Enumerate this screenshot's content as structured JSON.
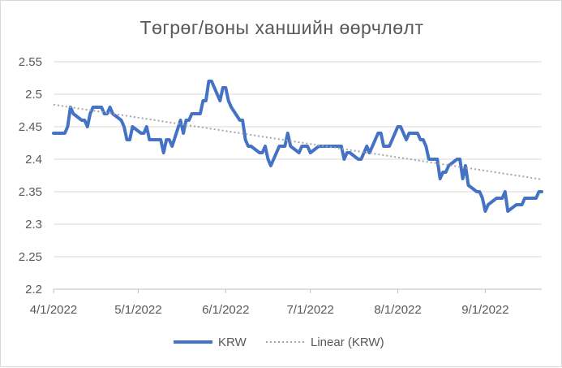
{
  "chart_data": {
    "type": "line",
    "title": "Төгрөг/воны ханшийн өөрчлөлт",
    "xlabel": "",
    "ylabel": "",
    "x_ticks": [
      "4/1/2022",
      "5/1/2022",
      "6/1/2022",
      "7/1/2022",
      "8/1/2022",
      "9/1/2022"
    ],
    "y_ticks": [
      "2.2",
      "2.25",
      "2.3",
      "2.35",
      "2.4",
      "2.45",
      "2.5",
      "2.55"
    ],
    "ylim": [
      2.2,
      2.55
    ],
    "xlim": [
      "2022-04-01",
      "2022-09-21"
    ],
    "grid": true,
    "legend_position": "bottom",
    "series": [
      {
        "name": "KRW",
        "color": "#4472c4",
        "style": "solid",
        "x": [
          "2022-04-01",
          "2022-04-04",
          "2022-04-05",
          "2022-04-06",
          "2022-04-07",
          "2022-04-08",
          "2022-04-11",
          "2022-04-12",
          "2022-04-13",
          "2022-04-14",
          "2022-04-15",
          "2022-04-18",
          "2022-04-19",
          "2022-04-20",
          "2022-04-21",
          "2022-04-22",
          "2022-04-25",
          "2022-04-26",
          "2022-04-27",
          "2022-04-28",
          "2022-04-29",
          "2022-05-02",
          "2022-05-03",
          "2022-05-04",
          "2022-05-05",
          "2022-05-06",
          "2022-05-09",
          "2022-05-10",
          "2022-05-11",
          "2022-05-12",
          "2022-05-13",
          "2022-05-16",
          "2022-05-17",
          "2022-05-18",
          "2022-05-19",
          "2022-05-20",
          "2022-05-23",
          "2022-05-24",
          "2022-05-25",
          "2022-05-26",
          "2022-05-27",
          "2022-05-30",
          "2022-05-31",
          "2022-06-01",
          "2022-06-02",
          "2022-06-03",
          "2022-06-06",
          "2022-06-07",
          "2022-06-08",
          "2022-06-09",
          "2022-06-10",
          "2022-06-13",
          "2022-06-14",
          "2022-06-15",
          "2022-06-16",
          "2022-06-17",
          "2022-06-20",
          "2022-06-21",
          "2022-06-22",
          "2022-06-23",
          "2022-06-24",
          "2022-06-27",
          "2022-06-28",
          "2022-06-29",
          "2022-06-30",
          "2022-07-01",
          "2022-07-04",
          "2022-07-05",
          "2022-07-06",
          "2022-07-07",
          "2022-07-08",
          "2022-07-11",
          "2022-07-12",
          "2022-07-13",
          "2022-07-14",
          "2022-07-15",
          "2022-07-18",
          "2022-07-19",
          "2022-07-20",
          "2022-07-21",
          "2022-07-22",
          "2022-07-25",
          "2022-07-26",
          "2022-07-27",
          "2022-07-28",
          "2022-07-29",
          "2022-08-01",
          "2022-08-02",
          "2022-08-03",
          "2022-08-04",
          "2022-08-05",
          "2022-08-08",
          "2022-08-09",
          "2022-08-10",
          "2022-08-11",
          "2022-08-12",
          "2022-08-15",
          "2022-08-16",
          "2022-08-17",
          "2022-08-18",
          "2022-08-19",
          "2022-08-22",
          "2022-08-23",
          "2022-08-24",
          "2022-08-25",
          "2022-08-26",
          "2022-08-29",
          "2022-08-30",
          "2022-08-31",
          "2022-09-01",
          "2022-09-02",
          "2022-09-05",
          "2022-09-06",
          "2022-09-07",
          "2022-09-08",
          "2022-09-09",
          "2022-09-12",
          "2022-09-13",
          "2022-09-14",
          "2022-09-15",
          "2022-09-16",
          "2022-09-19",
          "2022-09-20",
          "2022-09-21"
        ],
        "values": [
          2.44,
          2.44,
          2.44,
          2.45,
          2.48,
          2.47,
          2.46,
          2.46,
          2.45,
          2.47,
          2.48,
          2.48,
          2.47,
          2.47,
          2.48,
          2.47,
          2.46,
          2.45,
          2.43,
          2.43,
          2.45,
          2.44,
          2.44,
          2.45,
          2.43,
          2.43,
          2.43,
          2.41,
          2.43,
          2.43,
          2.42,
          2.46,
          2.44,
          2.46,
          2.46,
          2.47,
          2.47,
          2.49,
          2.49,
          2.52,
          2.52,
          2.49,
          2.51,
          2.51,
          2.49,
          2.48,
          2.46,
          2.46,
          2.43,
          2.42,
          2.42,
          2.41,
          2.41,
          2.42,
          2.4,
          2.39,
          2.42,
          2.42,
          2.42,
          2.44,
          2.42,
          2.41,
          2.42,
          2.42,
          2.42,
          2.41,
          2.42,
          2.42,
          2.42,
          2.42,
          2.42,
          2.42,
          2.42,
          2.4,
          2.41,
          2.41,
          2.4,
          2.4,
          2.41,
          2.42,
          2.41,
          2.44,
          2.44,
          2.42,
          2.42,
          2.42,
          2.45,
          2.45,
          2.44,
          2.43,
          2.44,
          2.44,
          2.43,
          2.43,
          2.42,
          2.4,
          2.4,
          2.37,
          2.38,
          2.38,
          2.39,
          2.4,
          2.4,
          2.37,
          2.39,
          2.36,
          2.35,
          2.35,
          2.34,
          2.32,
          2.33,
          2.34,
          2.34,
          2.34,
          2.35,
          2.32,
          2.33,
          2.33,
          2.33,
          2.34,
          2.34,
          2.34,
          2.35,
          2.35
        ]
      },
      {
        "name": "Linear (KRW)",
        "color": "#a6a6a6",
        "style": "dotted",
        "x": [
          "2022-04-01",
          "2022-09-21"
        ],
        "values": [
          2.484,
          2.369
        ]
      }
    ]
  }
}
